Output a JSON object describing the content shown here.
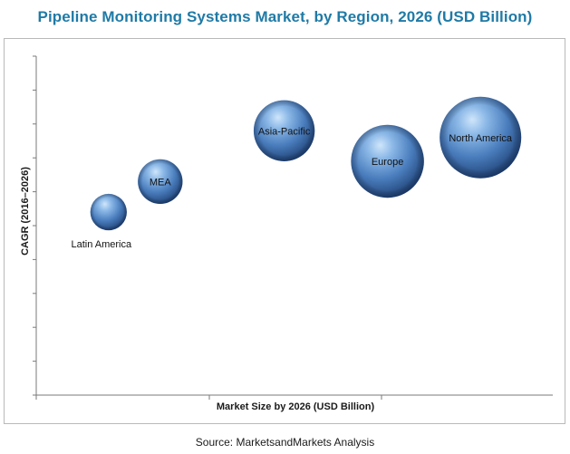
{
  "title": "Pipeline Monitoring Systems Market, by Region, 2026 (USD Billion)",
  "source": "Source:  MarketsandMarkets Analysis",
  "colors": {
    "title": "#1f7aa6",
    "bubble_light": "#a9d0f0",
    "bubble_mid": "#4f86c6",
    "bubble_dark": "#1c3f73"
  },
  "chart_data": {
    "type": "bubble",
    "title": "Pipeline Monitoring Systems Market, by Region, 2026 (USD Billion)",
    "xlabel": "Market Size by 2026 (USD Billion)",
    "ylabel": "CAGR (2016–2026)",
    "x_tick_labels": false,
    "y_tick_labels": false,
    "grid": false,
    "legend": "none",
    "series": [
      {
        "name": "Latin America",
        "x": 0.7,
        "y": 5.4,
        "size": 1.0
      },
      {
        "name": "MEA",
        "x": 1.2,
        "y": 6.3,
        "size": 1.5
      },
      {
        "name": "Asia-Pacific",
        "x": 2.4,
        "y": 7.8,
        "size": 2.8
      },
      {
        "name": "Europe",
        "x": 3.4,
        "y": 6.9,
        "size": 4.0
      },
      {
        "name": "North America",
        "x": 4.3,
        "y": 7.6,
        "size": 5.0
      }
    ]
  }
}
